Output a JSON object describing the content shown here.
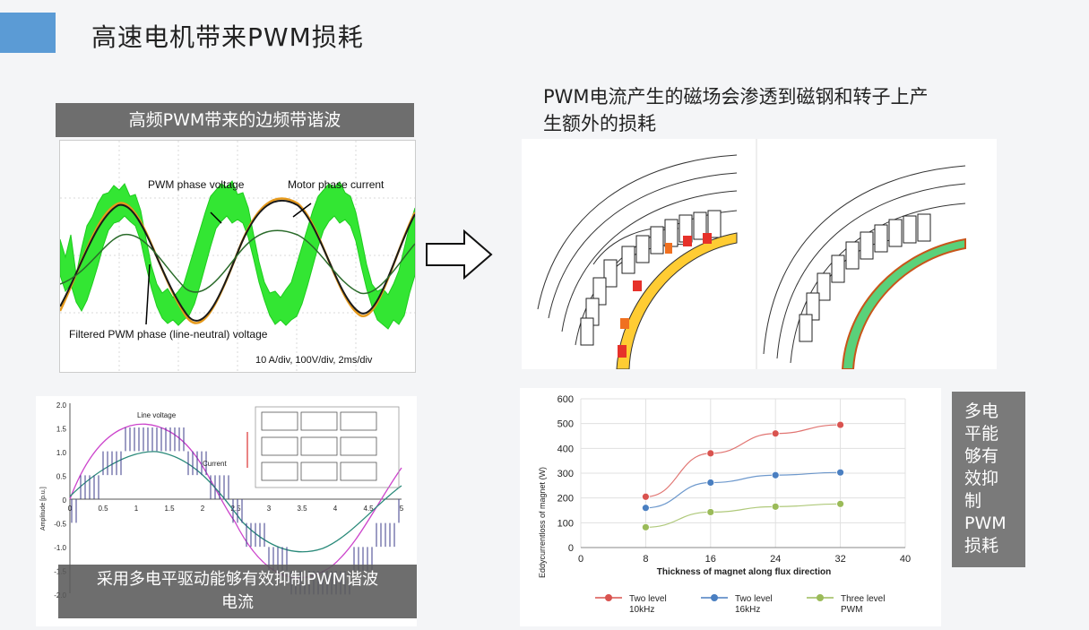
{
  "slide": {
    "title": "高速电机带来PWM损耗"
  },
  "top_left": {
    "header": "高频PWM带来的边频带谐波",
    "label_pwm_voltage": "PWM phase voltage",
    "label_motor_current": "Motor phase current",
    "label_filtered": "Filtered PWM phase (line-neutral) voltage",
    "label_scale": "10 A/div, 100V/div, 2ms/div"
  },
  "top_right": {
    "caption_line1": "PWM电流产生的磁场会渗透到磁钢和转子上产",
    "caption_line2": "生额外的损耗"
  },
  "bottom_left": {
    "caption_line1": "采用多电平驱动能够有效抑制PWM谐波",
    "caption_line2": "电流",
    "ylabel": "Amplitude [p.u.]",
    "line_voltage_label": "Line voltage",
    "current_label": "Current",
    "y_ticks": [
      "2.0",
      "1.5",
      "1.0",
      "0.5",
      "0",
      "-0.5",
      "-1.0",
      "-1.5",
      "-2.0"
    ],
    "x_ticks": [
      "0",
      "0.5",
      "1",
      "1.5",
      "2",
      "2.5",
      "3",
      "3.5",
      "4",
      "4.5",
      "5"
    ]
  },
  "side_note": {
    "lines": [
      "多电",
      "平能",
      "够有",
      "效抑",
      "制",
      "PWM",
      "损耗"
    ]
  },
  "chart_data": {
    "type": "line",
    "ylabel": "Eddycurrentloss of magnet (W)",
    "xlabel": "Thickness of magnet along flux direction",
    "xlim": [
      0,
      40
    ],
    "ylim": [
      0,
      600
    ],
    "x_ticks": [
      0,
      8,
      16,
      24,
      32,
      40
    ],
    "y_ticks": [
      0,
      100,
      200,
      300,
      400,
      500,
      600
    ],
    "x": [
      8,
      16,
      24,
      32
    ],
    "series": [
      {
        "name": "Two level 10kHz",
        "color": "#d9534f",
        "values": [
          205,
          380,
          460,
          495
        ]
      },
      {
        "name": "Two level 16kHz",
        "color": "#4a7fc1",
        "values": [
          160,
          262,
          292,
          303
        ]
      },
      {
        "name": "Three level PWM",
        "color": "#9bbb59",
        "values": [
          82,
          143,
          165,
          176
        ]
      }
    ],
    "legend": [
      {
        "line1": "Two level",
        "line2": "10kHz"
      },
      {
        "line1": "Two level",
        "line2": "16kHz"
      },
      {
        "line1": "Three level",
        "line2": "PWM"
      }
    ],
    "grid": true
  }
}
